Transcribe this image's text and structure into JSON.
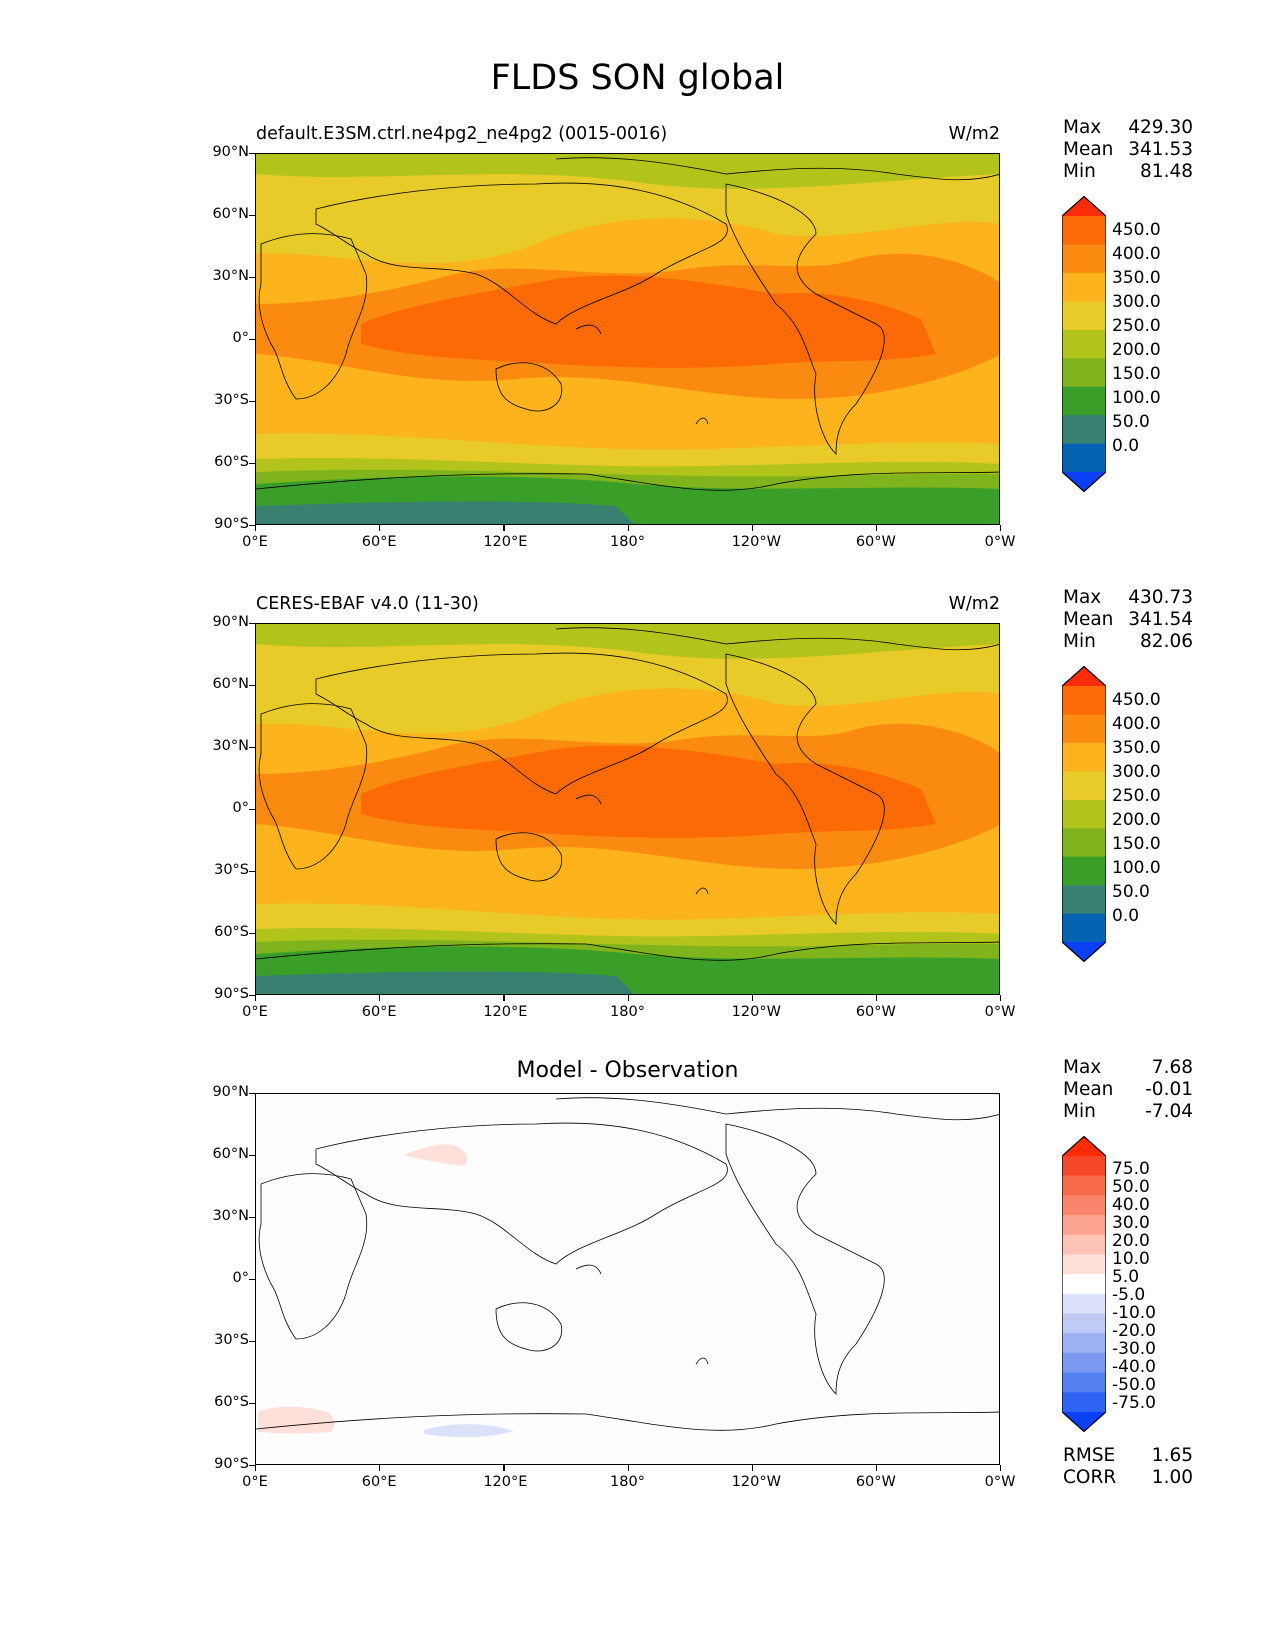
{
  "figure_title": "FLDS SON global",
  "colors": {
    "abs_levels": [
      "#0b3ff5",
      "#0663b4",
      "#3a8070",
      "#3a9f28",
      "#80b41c",
      "#b2c41c",
      "#e8ca28",
      "#fcb31c",
      "#fb8b10",
      "#fb6a04",
      "#ff2c0a"
    ],
    "diff_levels": [
      "#0b3ff5",
      "#2f63f3",
      "#5582f0",
      "#7a98f0",
      "#9db1f2",
      "#c0cbf5",
      "#dbe1f8",
      "#ffffff",
      "#fde0d9",
      "#fdc3b7",
      "#fca291",
      "#fb846c",
      "#f96c4b",
      "#f5462a",
      "#ff2c0a"
    ]
  },
  "axis_labels": {
    "lat": [
      "90°N",
      "60°N",
      "30°N",
      "0°",
      "30°S",
      "60°S",
      "90°S"
    ],
    "lon": [
      "0°E",
      "60°E",
      "120°E",
      "180°",
      "120°W",
      "60°W",
      "0°W"
    ]
  },
  "panels": [
    {
      "title": "default.E3SM.ctrl.ne4pg2_ne4pg2 (0015-0016)",
      "units": "W/m2",
      "stats": {
        "max_label": "Max",
        "max": "429.30",
        "mean_label": "Mean",
        "mean": "341.53",
        "min_label": "Min",
        "min": "81.48"
      },
      "colorbar_ticks": [
        "450.0",
        "400.0",
        "350.0",
        "300.0",
        "250.0",
        "200.0",
        "150.0",
        "100.0",
        "50.0",
        "0.0"
      ]
    },
    {
      "title": "CERES-EBAF v4.0 (11-30)",
      "units": "W/m2",
      "stats": {
        "max_label": "Max",
        "max": "430.73",
        "mean_label": "Mean",
        "mean": "341.54",
        "min_label": "Min",
        "min": "82.06"
      },
      "colorbar_ticks": [
        "450.0",
        "400.0",
        "350.0",
        "300.0",
        "250.0",
        "200.0",
        "150.0",
        "100.0",
        "50.0",
        "0.0"
      ]
    },
    {
      "title": "Model - Observation",
      "units": "",
      "stats": {
        "max_label": "Max",
        "max": "7.68",
        "mean_label": "Mean",
        "mean": "-0.01",
        "min_label": "Min",
        "min": "-7.04"
      },
      "colorbar_ticks": [
        "75.0",
        "50.0",
        "40.0",
        "30.0",
        "20.0",
        "10.0",
        "5.0",
        "-5.0",
        "-10.0",
        "-20.0",
        "-30.0",
        "-40.0",
        "-50.0",
        "-75.0"
      ],
      "metrics": {
        "rmse_label": "RMSE",
        "rmse": "1.65",
        "corr_label": "CORR",
        "corr": "1.00"
      }
    }
  ]
}
